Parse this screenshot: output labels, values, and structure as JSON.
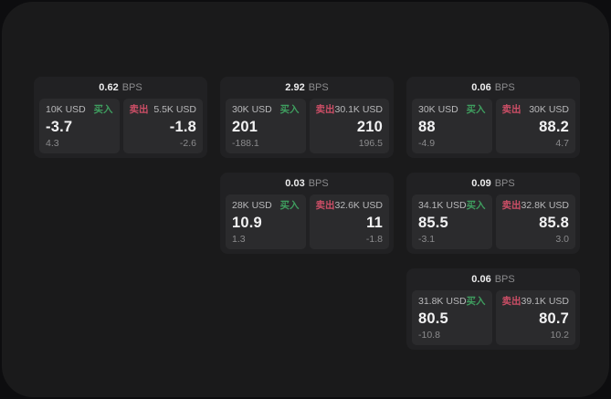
{
  "labels": {
    "bps": "BPS",
    "buy": "买入",
    "sell": "卖出"
  },
  "colors": {
    "page_bg": "#0d0d0f",
    "panel_bg": "#1a1a1b",
    "card_bg": "#212123",
    "side_bg": "#2b2b2d",
    "buy_green": "#3f9e5f",
    "sell_red": "#cc4e66",
    "price_white": "#f2f2f3",
    "muted_gray": "#8b8b8d"
  },
  "cards": [
    {
      "bps": "0.62",
      "buy": {
        "amount": "10K USD",
        "price": "-3.7",
        "delta": "4.3"
      },
      "sell": {
        "amount": "5.5K USD",
        "price": "-1.8",
        "delta": "-2.6"
      }
    },
    {
      "bps": "2.92",
      "buy": {
        "amount": "30K USD",
        "price": "201",
        "delta": "-188.1"
      },
      "sell": {
        "amount": "30.1K USD",
        "price": "210",
        "delta": "196.5"
      }
    },
    {
      "bps": "0.06",
      "buy": {
        "amount": "30K USD",
        "price": "88",
        "delta": "-4.9"
      },
      "sell": {
        "amount": "30K USD",
        "price": "88.2",
        "delta": "4.7"
      }
    },
    {
      "bps": "0.03",
      "buy": {
        "amount": "28K USD",
        "price": "10.9",
        "delta": "1.3"
      },
      "sell": {
        "amount": "32.6K USD",
        "price": "11",
        "delta": "-1.8"
      }
    },
    {
      "bps": "0.09",
      "buy": {
        "amount": "34.1K USD",
        "price": "85.5",
        "delta": "-3.1"
      },
      "sell": {
        "amount": "32.8K USD",
        "price": "85.8",
        "delta": "3.0"
      }
    },
    {
      "bps": "0.06",
      "buy": {
        "amount": "31.8K USD",
        "price": "80.5",
        "delta": "-10.8"
      },
      "sell": {
        "amount": "39.1K USD",
        "price": "80.7",
        "delta": "10.2"
      }
    }
  ]
}
